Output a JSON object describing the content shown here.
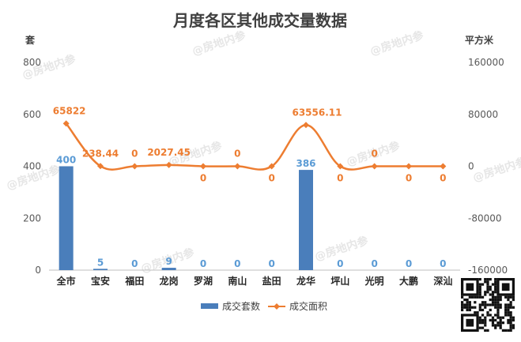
{
  "chart_data": {
    "type": "bar+line",
    "title": "月度各区其他成交量数据",
    "categories": [
      "全市",
      "宝安",
      "福田",
      "龙岗",
      "罗湖",
      "南山",
      "盐田",
      "龙华",
      "坪山",
      "光明",
      "大鹏",
      "深汕"
    ],
    "series": [
      {
        "name": "成交套数",
        "type": "bar",
        "axis": "left",
        "color": "#4a7ebb",
        "values": [
          400,
          5,
          0,
          9,
          0,
          0,
          0,
          386,
          0,
          0,
          0,
          0
        ],
        "labels": [
          "400",
          "5",
          "0",
          "9",
          "0",
          "0",
          "0",
          "386",
          "0",
          "0",
          "0",
          "0"
        ]
      },
      {
        "name": "成交面积",
        "type": "line",
        "axis": "right",
        "color": "#ed7d31",
        "values": [
          65822,
          238.44,
          0,
          2027.45,
          0,
          0,
          0,
          63556.11,
          0,
          0,
          0,
          0
        ],
        "labels": [
          "65822",
          "238.44",
          "0",
          "2027.45",
          "0",
          "0",
          "0",
          "63556.11",
          "0",
          "0",
          "0",
          "0"
        ]
      }
    ],
    "y_left": {
      "unit": "套",
      "min": 0,
      "max": 800,
      "ticks": [
        "0",
        "200",
        "400",
        "600",
        "800"
      ]
    },
    "y_right": {
      "unit": "平方米",
      "min": -160000,
      "max": 160000,
      "ticks": [
        "-160000",
        "-80000",
        "0",
        "80000",
        "160000"
      ]
    },
    "grid": false,
    "legend_position": "bottom"
  },
  "watermark_text": "@房地内参"
}
